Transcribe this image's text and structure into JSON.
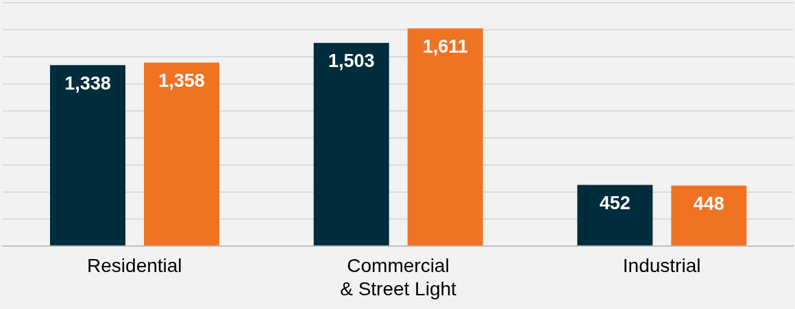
{
  "chart_data": {
    "type": "bar",
    "categories": [
      "Residential",
      "Commercial\n& Street Light",
      "Industrial"
    ],
    "series": [
      {
        "color": "#002d3c",
        "values": [
          1338,
          1503,
          452
        ],
        "value_labels": [
          "1,338",
          "1,503",
          "452"
        ]
      },
      {
        "color": "#f07323",
        "values": [
          1358,
          1611,
          448
        ],
        "value_labels": [
          "1,358",
          "1,611",
          "448"
        ]
      }
    ],
    "ylim": [
      0,
      1800
    ],
    "yticks": [
      {
        "value": 0,
        "label": null
      },
      {
        "value": 200,
        "label": null
      },
      {
        "value": 400,
        "label": null
      },
      {
        "value": 600,
        "label": null
      },
      {
        "value": 800,
        "label": null
      },
      {
        "value": 1000,
        "label": null
      },
      {
        "value": 1200,
        "label": null
      },
      {
        "value": 1400,
        "label": null
      },
      {
        "value": 1600,
        "label": null
      },
      {
        "value": 1800,
        "label": null
      }
    ],
    "tick_labels": "x",
    "grid": "y",
    "legend": false
  }
}
